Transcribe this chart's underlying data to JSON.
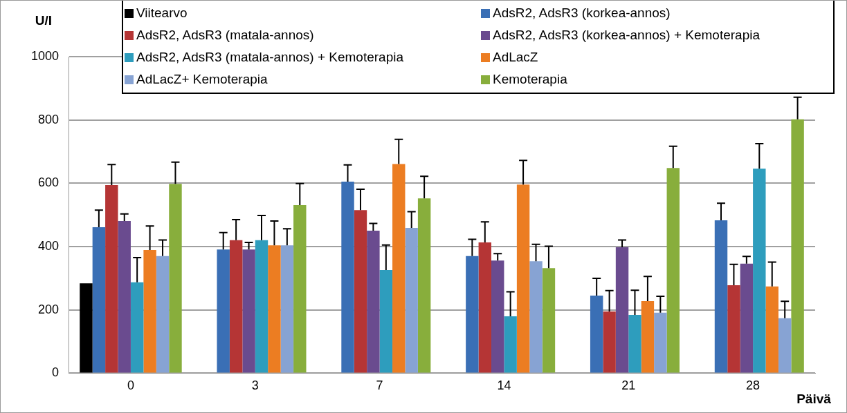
{
  "chart_data": {
    "type": "bar",
    "ylabel": "U/I",
    "xlabel": "Päivä",
    "categories": [
      "0",
      "3",
      "7",
      "14",
      "21",
      "28"
    ],
    "ylim": [
      0,
      1000
    ],
    "yticks": [
      0,
      200,
      400,
      600,
      800,
      1000
    ],
    "grid": "y",
    "legend": "top",
    "series": [
      {
        "name": "Viitearvo",
        "color": "#000000",
        "values": [
          284,
          null,
          null,
          null,
          null,
          null
        ]
      },
      {
        "name": "AdsR2, AdsR3 (korkea-annos)",
        "color": "#3a6fb5",
        "values": [
          461,
          391,
          605,
          370,
          245,
          483
        ],
        "errors": [
          [
            461,
            515
          ],
          [
            391,
            444
          ],
          [
            605,
            658
          ],
          [
            370,
            423
          ],
          [
            245,
            300
          ],
          [
            483,
            537
          ]
        ]
      },
      {
        "name": "AdsR2, AdsR3 (matala-annos)",
        "color": "#b53535",
        "values": [
          594,
          420,
          515,
          413,
          195,
          278
        ],
        "errors": [
          [
            594,
            659
          ],
          [
            420,
            485
          ],
          [
            515,
            581
          ],
          [
            413,
            478
          ],
          [
            195,
            261
          ],
          [
            278,
            344
          ]
        ]
      },
      {
        "name": "AdsR2, AdsR3 (korkea-annos) + Kemoterapia",
        "color": "#6a4b8f",
        "values": [
          481,
          391,
          450,
          356,
          398,
          346
        ],
        "errors": [
          [
            481,
            503
          ],
          [
            391,
            413
          ],
          [
            450,
            473
          ],
          [
            356,
            378
          ],
          [
            398,
            421
          ],
          [
            346,
            369
          ]
        ]
      },
      {
        "name": "AdsR2, AdsR3 (matala-annos) + Kemoterapia",
        "color": "#2e9dbd",
        "values": [
          287,
          420,
          326,
          180,
          184,
          646
        ],
        "errors": [
          [
            287,
            365
          ],
          [
            420,
            498
          ],
          [
            326,
            405
          ],
          [
            180,
            257
          ],
          [
            184,
            262
          ],
          [
            646,
            725
          ]
        ]
      },
      {
        "name": "AdLacZ",
        "color": "#ec7d22",
        "values": [
          389,
          404,
          661,
          596,
          228,
          274
        ],
        "errors": [
          [
            389,
            465
          ],
          [
            404,
            481
          ],
          [
            661,
            739
          ],
          [
            596,
            672
          ],
          [
            228,
            306
          ],
          [
            274,
            351
          ]
        ]
      },
      {
        "name": "AdLacZ+ Kemoterapia",
        "color": "#87a3d3",
        "values": [
          370,
          404,
          459,
          354,
          191,
          174
        ],
        "errors": [
          [
            370,
            421
          ],
          [
            404,
            456
          ],
          [
            459,
            510
          ],
          [
            354,
            407
          ],
          [
            191,
            243
          ],
          [
            174,
            227
          ]
        ]
      },
      {
        "name": "Kemoterapia",
        "color": "#88ae3c",
        "values": [
          598,
          531,
          552,
          332,
          648,
          802
        ],
        "errors": [
          [
            598,
            667
          ],
          [
            531,
            599
          ],
          [
            552,
            622
          ],
          [
            332,
            401
          ],
          [
            648,
            717
          ],
          [
            802,
            872
          ]
        ]
      }
    ]
  }
}
